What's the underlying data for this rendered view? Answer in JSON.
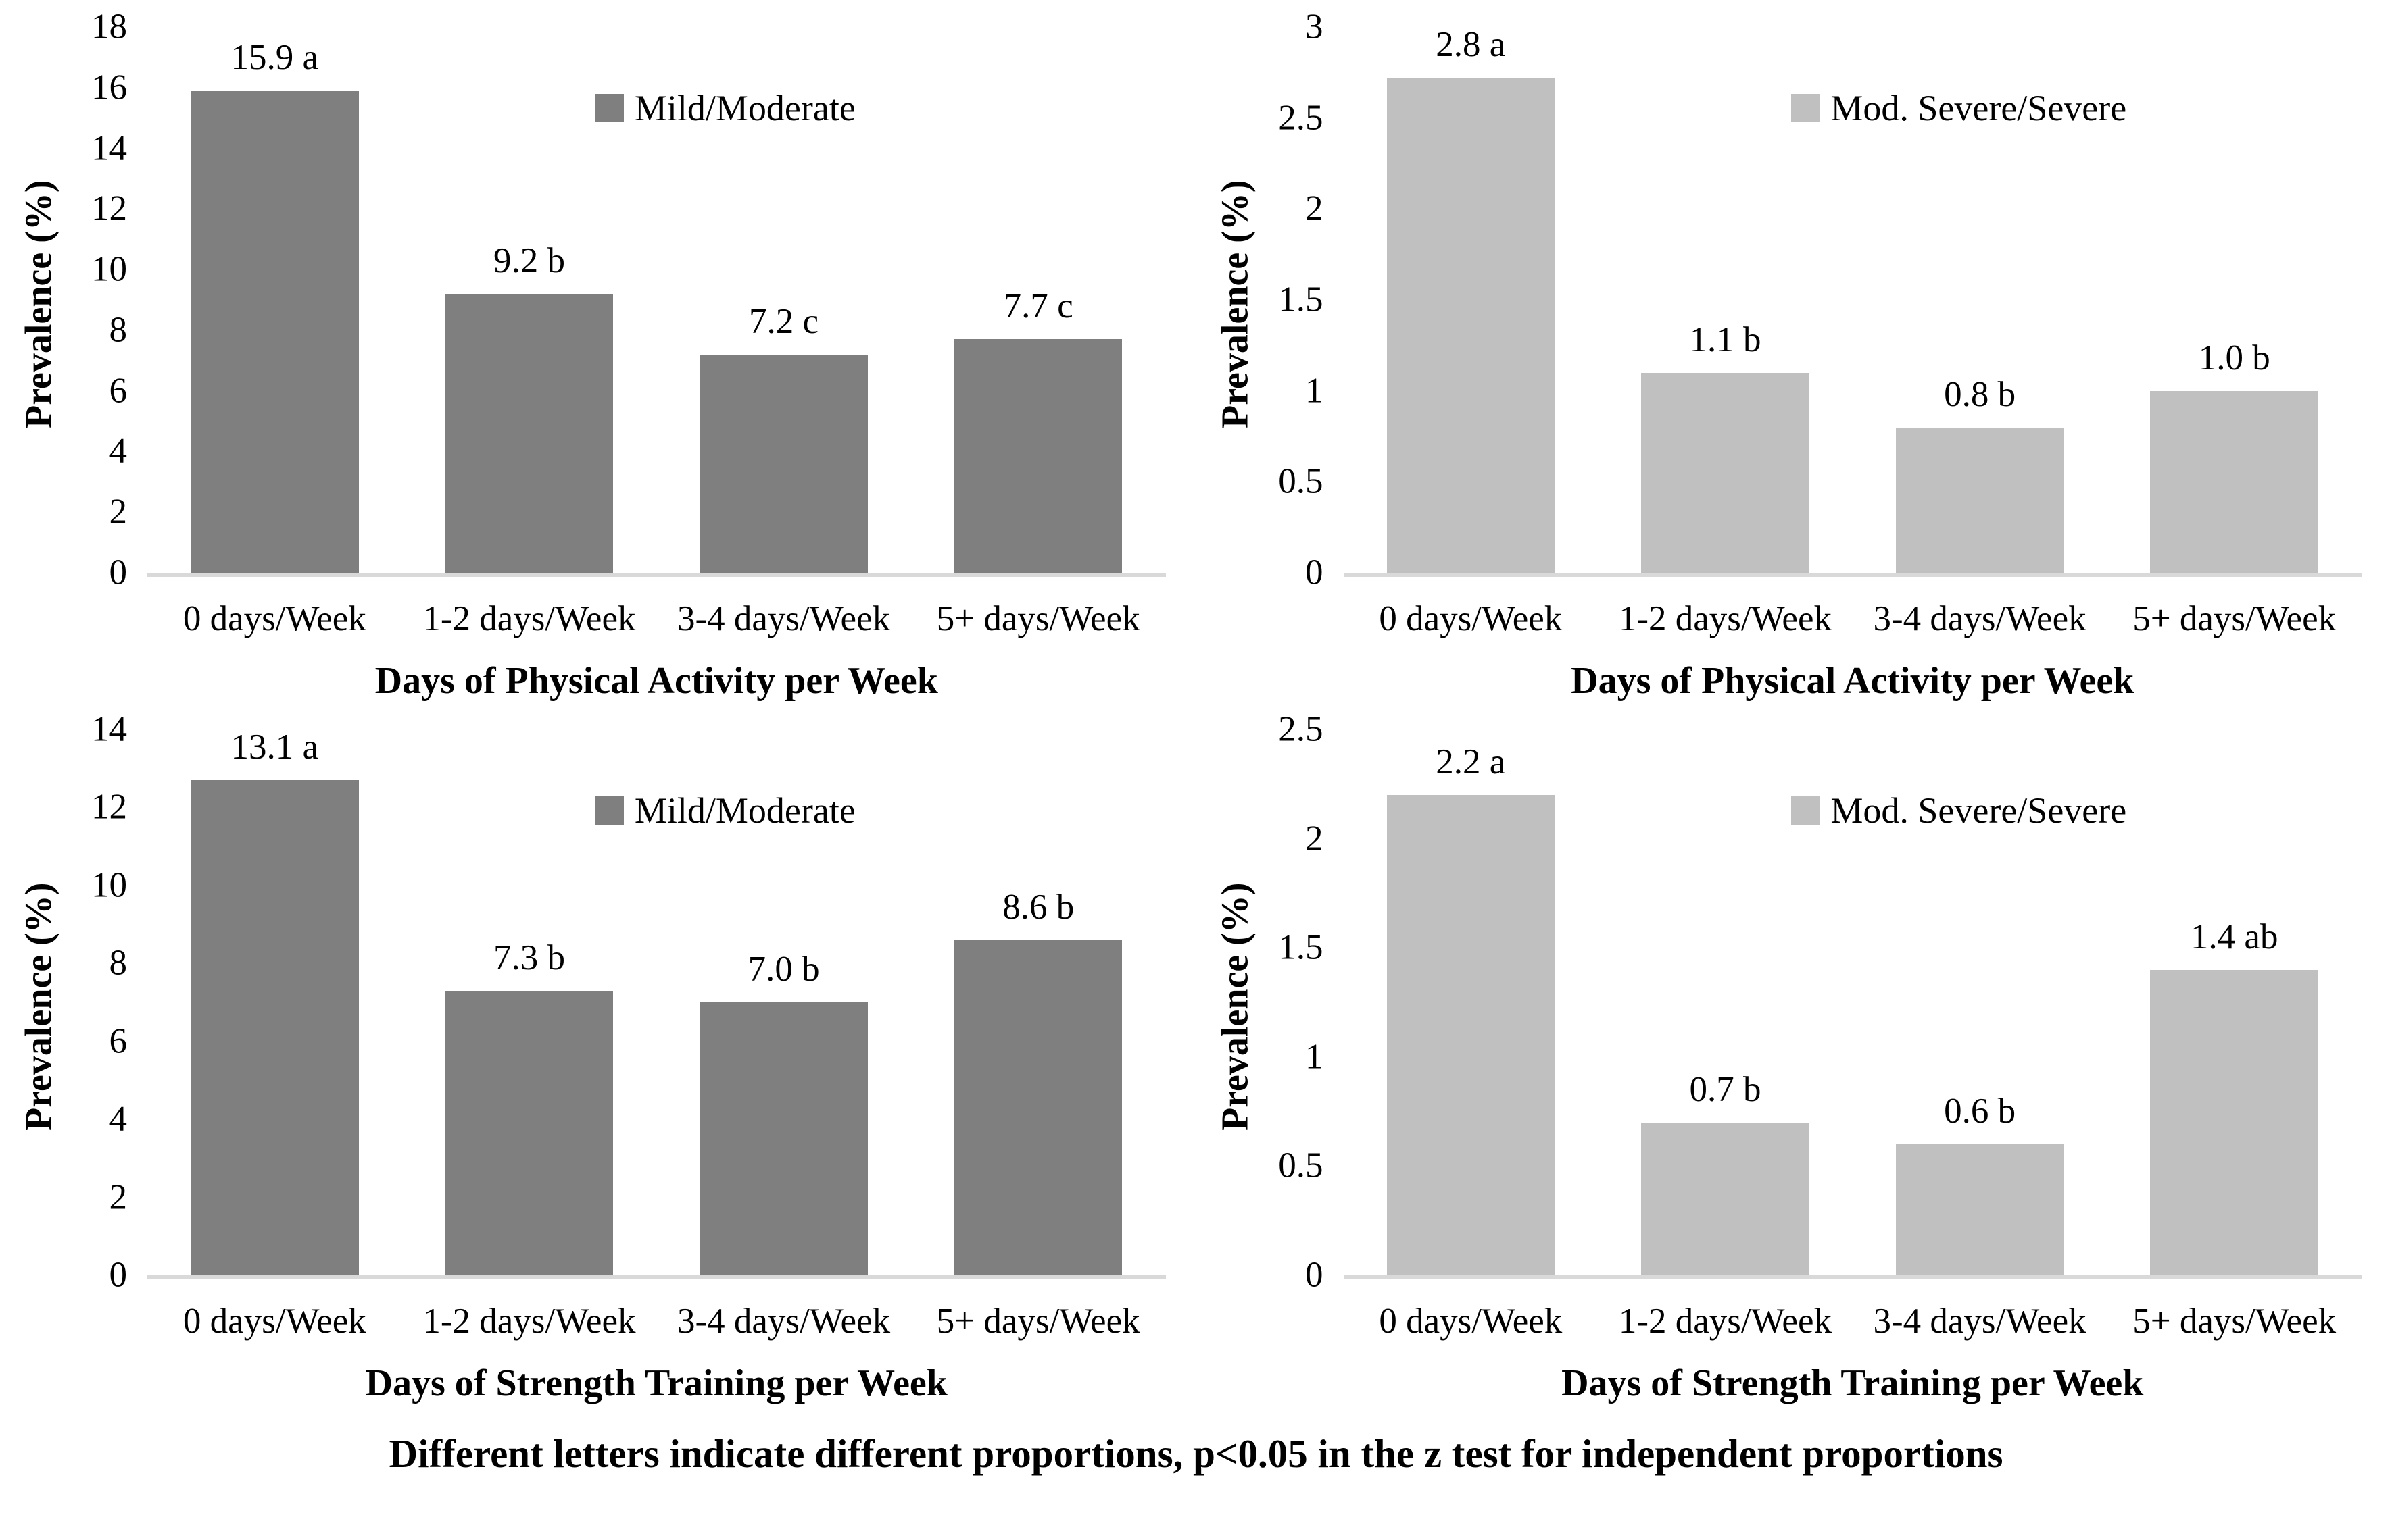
{
  "footer_note": "Different letters indicate different proportions, p<0.05 in the z test for independent proportions",
  "colors": {
    "mild_moderate_bar": "#7f7f7f",
    "mod_severe_bar": "#c0c0c0",
    "axis_line": "#d9d9d9",
    "text": "#000000",
    "background": "#ffffff"
  },
  "chart_data": [
    {
      "type": "bar",
      "panel": "top-left",
      "legend": "Mild/Moderate",
      "legend_position": "upper-center",
      "xlabel": "Days of Physical Activity per Week",
      "ylabel": "Prevalence (%)",
      "categories": [
        "0 days/Week",
        "1-2 days/Week",
        "3-4 days/Week",
        "5+ days/Week"
      ],
      "values": [
        15.9,
        9.2,
        7.2,
        7.7
      ],
      "data_labels": [
        "15.9 a",
        "9.2 b",
        "7.2 c",
        "7.7 c"
      ],
      "ylim": [
        0,
        18
      ],
      "yticks": [
        0,
        2,
        4,
        6,
        8,
        10,
        12,
        14,
        16,
        18
      ],
      "bar_color": "#7f7f7f",
      "grid": false
    },
    {
      "type": "bar",
      "panel": "top-right",
      "legend": "Mod. Severe/Severe",
      "legend_position": "upper-center",
      "xlabel": "Days of Physical Activity per Week",
      "ylabel": "Prevalence (%)",
      "categories": [
        "0 days/Week",
        "1-2 days/Week",
        "3-4 days/Week",
        "5+ days/Week"
      ],
      "values": [
        2.8,
        1.1,
        0.8,
        1.0
      ],
      "data_labels": [
        "2.8 a",
        "1.1 b",
        "0.8 b",
        "1.0 b"
      ],
      "ylim": [
        0,
        3
      ],
      "yticks": [
        0,
        0.5,
        1,
        1.5,
        2,
        2.5,
        3
      ],
      "bar_color": "#c0c0c0",
      "grid": false
    },
    {
      "type": "bar",
      "panel": "bottom-left",
      "legend": "Mild/Moderate",
      "legend_position": "upper-center",
      "xlabel": "Days of Strength Training per Week",
      "ylabel": "Prevalence (%)",
      "categories": [
        "0 days/Week",
        "1-2 days/Week",
        "3-4 days/Week",
        "5+ days/Week"
      ],
      "values": [
        13.1,
        7.3,
        7.0,
        8.6
      ],
      "data_labels": [
        "13.1 a",
        "7.3 b",
        "7.0 b",
        "8.6 b"
      ],
      "ylim": [
        0,
        14
      ],
      "yticks": [
        0,
        2,
        4,
        6,
        8,
        10,
        12,
        14
      ],
      "bar_color": "#7f7f7f",
      "grid": false
    },
    {
      "type": "bar",
      "panel": "bottom-right",
      "legend": "Mod. Severe/Severe",
      "legend_position": "upper-center",
      "xlabel": "Days of Strength Training per Week",
      "ylabel": "Prevalence (%)",
      "categories": [
        "0 days/Week",
        "1-2 days/Week",
        "3-4 days/Week",
        "5+ days/Week"
      ],
      "values": [
        2.2,
        0.7,
        0.6,
        1.4
      ],
      "data_labels": [
        "2.2 a",
        "0.7 b",
        "0.6 b",
        "1.4 ab"
      ],
      "ylim": [
        0,
        2.5
      ],
      "yticks": [
        0,
        0.5,
        1,
        1.5,
        2,
        2.5
      ],
      "bar_color": "#c0c0c0",
      "grid": false
    }
  ]
}
